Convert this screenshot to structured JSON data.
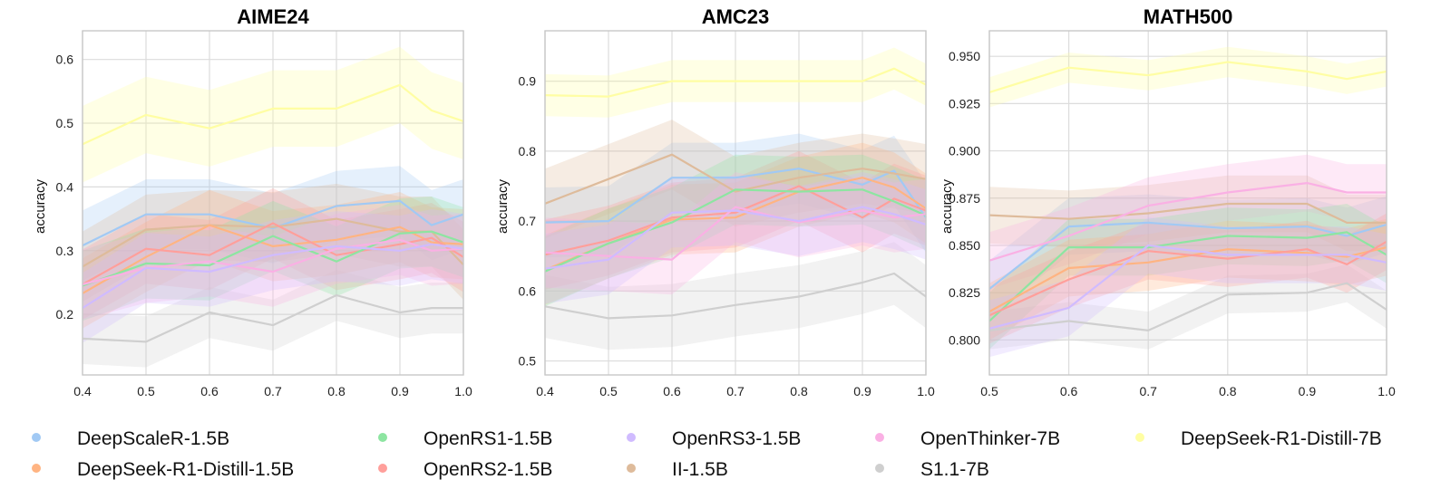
{
  "colors": {
    "DeepScaleR-1.5B": "#A1C9F4",
    "DeepSeek-R1-Distill-1.5B": "#FFB482",
    "OpenRS1-1.5B": "#8DE5A1",
    "OpenRS2-1.5B": "#FF9F9B",
    "OpenRS3-1.5B": "#D0BBFF",
    "II-1.5B": "#DEBB9B",
    "OpenThinker-7B": "#FAB0E4",
    "S1.1-7B": "#CFCFCF",
    "DeepSeek-R1-Distill-7B": "#FFFEA3"
  },
  "legend": {
    "items": [
      "DeepScaleR-1.5B",
      "DeepSeek-R1-Distill-1.5B",
      "OpenRS1-1.5B",
      "OpenRS2-1.5B",
      "OpenRS3-1.5B",
      "II-1.5B",
      "OpenThinker-7B",
      "S1.1-7B",
      "DeepSeek-R1-Distill-7B"
    ]
  },
  "chart_data": [
    {
      "type": "line",
      "title": "AIME24",
      "xlabel": "",
      "ylabel": "accuracy",
      "xlim": [
        0.4,
        1.0
      ],
      "ylim": [
        0.105,
        0.645
      ],
      "xticks": [
        0.4,
        0.5,
        0.6,
        0.7,
        0.8,
        0.9,
        1.0
      ],
      "xtick_labels": [
        "0.4",
        "0.5",
        "0.6",
        "0.7",
        "0.8",
        "0.9",
        "1.0"
      ],
      "yticks": [
        0.2,
        0.3,
        0.4,
        0.5,
        0.6
      ],
      "ytick_labels": [
        "0.2",
        "0.3",
        "0.4",
        "0.5",
        "0.6"
      ],
      "grid": true,
      "x": [
        0.4,
        0.5,
        0.6,
        0.7,
        0.8,
        0.9,
        0.95,
        1.0
      ],
      "band_width": 0.055,
      "series": [
        {
          "name": "DeepSeek-R1-Distill-7B",
          "values": [
            0.467,
            0.513,
            0.492,
            0.523,
            0.523,
            0.56,
            0.52,
            0.503
          ],
          "band": 0.06
        },
        {
          "name": "S1.1-7B",
          "values": [
            0.162,
            0.157,
            0.203,
            0.183,
            0.23,
            0.203,
            0.21,
            0.21
          ],
          "band": 0.04
        },
        {
          "name": "DeepScaleR-1.5B",
          "values": [
            0.308,
            0.357,
            0.357,
            0.335,
            0.37,
            0.378,
            0.34,
            0.357
          ]
        },
        {
          "name": "II-1.5B",
          "values": [
            0.275,
            0.333,
            0.34,
            0.337,
            0.35,
            0.33,
            0.33,
            0.278
          ]
        },
        {
          "name": "DeepSeek-R1-Distill-1.5B",
          "values": [
            0.233,
            0.29,
            0.34,
            0.307,
            0.317,
            0.337,
            0.313,
            0.31
          ]
        },
        {
          "name": "OpenRS2-1.5B",
          "values": [
            0.247,
            0.303,
            0.293,
            0.343,
            0.293,
            0.31,
            0.32,
            0.29
          ]
        },
        {
          "name": "OpenRS1-1.5B",
          "values": [
            0.245,
            0.28,
            0.277,
            0.323,
            0.283,
            0.327,
            0.33,
            0.313
          ]
        },
        {
          "name": "OpenThinker-7B",
          "values": [
            0.247,
            0.273,
            0.283,
            0.267,
            0.303,
            0.317,
            0.3,
            0.303
          ]
        },
        {
          "name": "OpenRS3-1.5B",
          "values": [
            0.21,
            0.273,
            0.267,
            0.293,
            0.307,
            0.3,
            0.31,
            0.303
          ]
        }
      ]
    },
    {
      "type": "line",
      "title": "AMC23",
      "xlabel": "",
      "ylabel": "accuracy",
      "xlim": [
        0.4,
        1.0
      ],
      "ylim": [
        0.48,
        0.972
      ],
      "xticks": [
        0.4,
        0.5,
        0.6,
        0.7,
        0.8,
        0.9,
        1.0
      ],
      "xtick_labels": [
        "0.4",
        "0.5",
        "0.6",
        "0.7",
        "0.8",
        "0.9",
        "1.0"
      ],
      "yticks": [
        0.5,
        0.6,
        0.7,
        0.8,
        0.9
      ],
      "ytick_labels": [
        "0.5",
        "0.6",
        "0.7",
        "0.8",
        "0.9"
      ],
      "grid": true,
      "x": [
        0.4,
        0.5,
        0.6,
        0.7,
        0.8,
        0.9,
        0.95,
        1.0
      ],
      "band_width": 0.05,
      "series": [
        {
          "name": "DeepSeek-R1-Distill-7B",
          "values": [
            0.88,
            0.878,
            0.9,
            0.9,
            0.9,
            0.9,
            0.918,
            0.895
          ],
          "band": 0.03
        },
        {
          "name": "S1.1-7B",
          "values": [
            0.578,
            0.561,
            0.565,
            0.58,
            0.592,
            0.612,
            0.625,
            0.592
          ],
          "band": 0.045
        },
        {
          "name": "DeepScaleR-1.5B",
          "values": [
            0.698,
            0.7,
            0.762,
            0.762,
            0.775,
            0.752,
            0.772,
            0.705
          ]
        },
        {
          "name": "II-1.5B",
          "values": [
            0.725,
            0.76,
            0.795,
            0.742,
            0.762,
            0.775,
            0.768,
            0.76
          ]
        },
        {
          "name": "DeepSeek-R1-Distill-1.5B",
          "values": [
            0.63,
            0.668,
            0.702,
            0.705,
            0.742,
            0.762,
            0.748,
            0.718
          ]
        },
        {
          "name": "OpenRS2-1.5B",
          "values": [
            0.652,
            0.672,
            0.705,
            0.712,
            0.75,
            0.705,
            0.732,
            0.715
          ]
        },
        {
          "name": "OpenRS1-1.5B",
          "values": [
            0.628,
            0.668,
            0.698,
            0.745,
            0.742,
            0.745,
            0.728,
            0.708
          ]
        },
        {
          "name": "OpenThinker-7B",
          "values": [
            0.655,
            0.65,
            0.645,
            0.72,
            0.698,
            0.715,
            0.705,
            0.71
          ]
        },
        {
          "name": "OpenRS3-1.5B",
          "values": [
            0.632,
            0.645,
            0.712,
            0.715,
            0.7,
            0.72,
            0.71,
            0.695
          ]
        }
      ]
    },
    {
      "type": "line",
      "title": "MATH500",
      "xlabel": "",
      "ylabel": "accuracy",
      "xlim": [
        0.5,
        1.0
      ],
      "ylim": [
        0.7815,
        0.9635
      ],
      "xticks": [
        0.5,
        0.6,
        0.7,
        0.8,
        0.9,
        1.0
      ],
      "xtick_labels": [
        "0.5",
        "0.6",
        "0.7",
        "0.8",
        "0.9",
        "1.0"
      ],
      "yticks": [
        0.8,
        0.825,
        0.85,
        0.875,
        0.9,
        0.925,
        0.95
      ],
      "ytick_labels": [
        "0.800",
        "0.825",
        "0.850",
        "0.875",
        "0.900",
        "0.925",
        "0.950"
      ],
      "grid": true,
      "x": [
        0.5,
        0.6,
        0.7,
        0.8,
        0.9,
        0.95,
        1.0
      ],
      "band_width": 0.015,
      "series": [
        {
          "name": "DeepSeek-R1-Distill-7B",
          "values": [
            0.931,
            0.944,
            0.94,
            0.947,
            0.942,
            0.938,
            0.942
          ],
          "band": 0.008
        },
        {
          "name": "S1.1-7B",
          "values": [
            0.805,
            0.81,
            0.805,
            0.824,
            0.825,
            0.83,
            0.816
          ],
          "band": 0.01
        },
        {
          "name": "DeepScaleR-1.5B",
          "values": [
            0.827,
            0.86,
            0.862,
            0.859,
            0.86,
            0.855,
            0.861
          ]
        },
        {
          "name": "II-1.5B",
          "values": [
            0.866,
            0.864,
            0.867,
            0.872,
            0.872,
            0.862,
            0.862
          ]
        },
        {
          "name": "OpenThinker-7B",
          "values": [
            0.842,
            0.855,
            0.871,
            0.878,
            0.883,
            0.878,
            0.878
          ]
        },
        {
          "name": "OpenRS1-1.5B",
          "values": [
            0.81,
            0.849,
            0.849,
            0.855,
            0.854,
            0.857,
            0.845
          ]
        },
        {
          "name": "DeepSeek-R1-Distill-1.5B",
          "values": [
            0.815,
            0.838,
            0.841,
            0.848,
            0.846,
            0.844,
            0.849
          ]
        },
        {
          "name": "OpenRS2-1.5B",
          "values": [
            0.813,
            0.832,
            0.847,
            0.843,
            0.848,
            0.84,
            0.852
          ]
        },
        {
          "name": "OpenRS3-1.5B",
          "values": [
            0.806,
            0.817,
            0.85,
            0.845,
            0.845,
            0.845,
            0.841
          ]
        }
      ]
    }
  ]
}
